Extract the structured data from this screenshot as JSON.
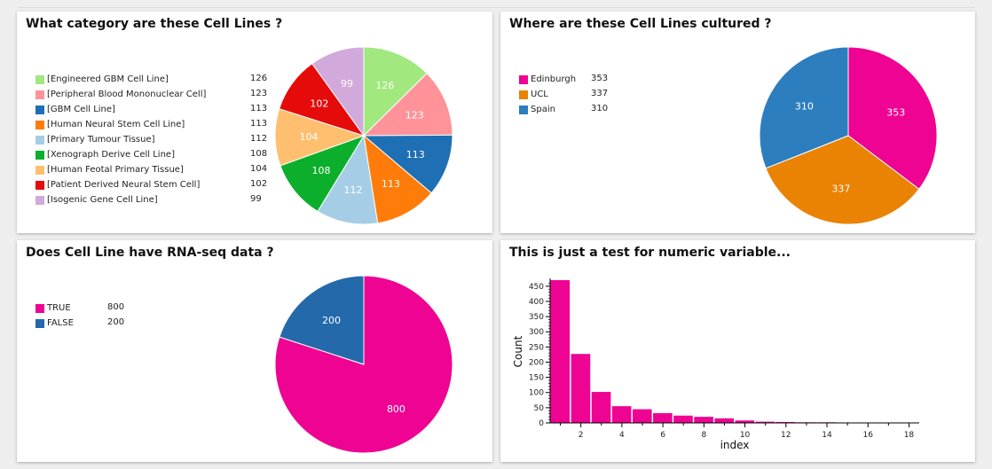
{
  "charts": [
    {
      "type": "pie",
      "title": "What category are these Cell Lines ?",
      "slices": [
        {
          "label": "[Engineered GBM Cell Line]",
          "value": 126,
          "color": "#a1e87f"
        },
        {
          "label": "[Peripheral Blood Mononuclear Cell]",
          "value": 123,
          "color": "#ff9399"
        },
        {
          "label": "[GBM Cell Line]",
          "value": 113,
          "color": "#1f6fb4"
        },
        {
          "label": "[Human Neural Stem Cell Line]",
          "value": 113,
          "color": "#ff7c0a"
        },
        {
          "label": "[Primary Tumour Tissue]",
          "value": 112,
          "color": "#a5cde6"
        },
        {
          "label": "[Xenograph Derive Cell Line]",
          "value": 108,
          "color": "#0caf2c"
        },
        {
          "label": "[Human Feotal Primary Tissue]",
          "value": 104,
          "color": "#ffbf6e"
        },
        {
          "label": "[Patient Derived Neural Stem Cell]",
          "value": 102,
          "color": "#e60b0b"
        },
        {
          "label": "[Isogenic Gene Cell Line]",
          "value": 99,
          "color": "#d1aadb"
        }
      ]
    },
    {
      "type": "pie",
      "title": "Where are these Cell Lines cultured ?",
      "slices": [
        {
          "label": "Edinburgh",
          "value": 353,
          "color": "#ee0392"
        },
        {
          "label": "UCL",
          "value": 337,
          "color": "#ea8203"
        },
        {
          "label": "Spain",
          "value": 310,
          "color": "#2d7ebf"
        }
      ]
    },
    {
      "type": "pie",
      "title": "Does Cell Line have RNA-seq data ?",
      "slices": [
        {
          "label": "TRUE",
          "value": 800,
          "color": "#ee0392"
        },
        {
          "label": "FALSE",
          "value": 200,
          "color": "#2469aa"
        }
      ]
    },
    {
      "type": "bar",
      "title": "This is just a test for numeric variable...",
      "xlabel": "index",
      "ylabel": "Count",
      "color": "#ee0392",
      "categories": [
        1,
        2,
        3,
        4,
        5,
        6,
        7,
        8,
        9,
        10,
        11,
        12,
        13,
        14,
        15,
        16,
        17,
        18
      ],
      "values": [
        470,
        227,
        102,
        55,
        45,
        32,
        24,
        20,
        15,
        8,
        4,
        3,
        2,
        2,
        1,
        1,
        1,
        1
      ],
      "ylim": [
        0,
        470
      ],
      "yticks": [
        0,
        50,
        100,
        150,
        200,
        250,
        300,
        350,
        400,
        450
      ],
      "xticks": [
        2,
        4,
        6,
        8,
        10,
        12,
        14,
        16,
        18
      ]
    }
  ]
}
